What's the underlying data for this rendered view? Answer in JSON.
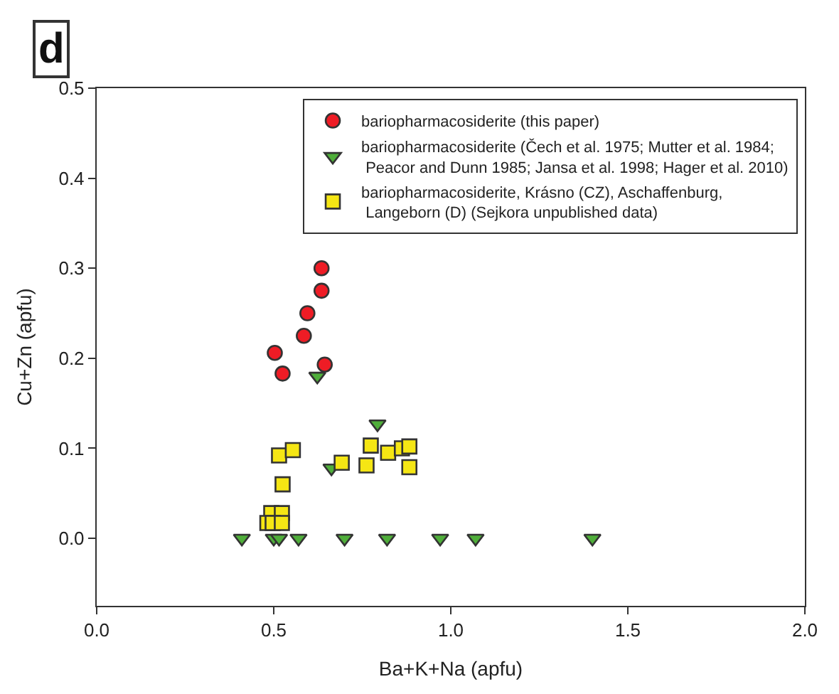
{
  "chart_data": {
    "type": "scatter",
    "title": "d",
    "xlabel": "Ba+K+Na (apfu)",
    "ylabel": "Cu+Zn (apfu)",
    "xlim": [
      0,
      2
    ],
    "xticks": [
      {
        "value": 0,
        "label": "0.0"
      },
      0.5,
      {
        "value": 1,
        "label": "1.0"
      },
      1.5,
      {
        "value": 2,
        "label": "2.0"
      }
    ],
    "ylim": [
      -0.075,
      0.5
    ],
    "yticks": [
      {
        "value": 0,
        "label": "0.0"
      },
      0.1,
      0.2,
      0.3,
      0.4,
      0.5
    ],
    "legend": "top right",
    "series": [
      {
        "name": "bariopharmacosiderite (this paper)",
        "color": "#ee1c25",
        "marker": "circle",
        "x": [
          0.635,
          0.635,
          0.595,
          0.585,
          0.503,
          0.525,
          0.644
        ],
        "values": [
          0.3,
          0.275,
          0.25,
          0.225,
          0.206,
          0.183,
          0.193
        ]
      },
      {
        "name": "bariopharmacosiderite (Čech et al. 1975; Mutter et al. 1984;\n Peacor and Dunn 1985; Jansa et al. 1998; Hager et al. 2010)",
        "color": "#4fae3a",
        "marker": "triangle",
        "x": [
          0.623,
          0.793,
          0.663,
          0.41,
          0.5,
          0.515,
          0.57,
          0.7,
          0.82,
          0.97,
          1.07,
          1.4
        ],
        "values": [
          0.18,
          0.127,
          0.078,
          0,
          0,
          0,
          0,
          0,
          0,
          0,
          0,
          0
        ]
      },
      {
        "name": "bariopharmacosiderite, Krásno (CZ), Aschaffenburg,\n Langeborn (D) (Sejkora unpublished data)",
        "color": "#f5e614",
        "marker": "square",
        "x": [
          0.515,
          0.554,
          0.525,
          0.493,
          0.523,
          0.482,
          0.497,
          0.523,
          0.692,
          0.762,
          0.774,
          0.823,
          0.862,
          0.883,
          0.883
        ],
        "values": [
          0.092,
          0.098,
          0.06,
          0.028,
          0.028,
          0.017,
          0.017,
          0.017,
          0.084,
          0.081,
          0.103,
          0.095,
          0.1,
          0.102,
          0.079
        ]
      }
    ]
  }
}
